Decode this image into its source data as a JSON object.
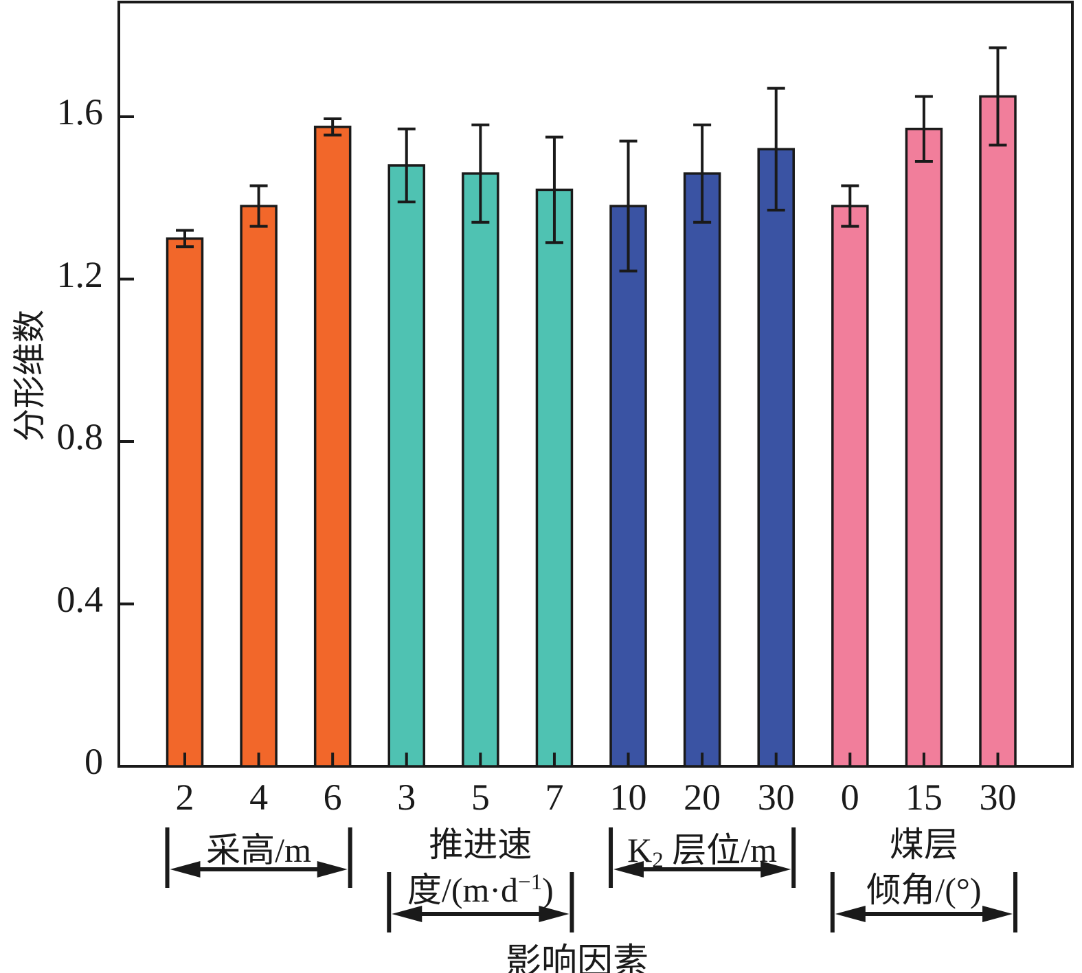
{
  "chart_data": {
    "type": "bar",
    "title": "",
    "ylabel": "分形维数",
    "xlabel": "影响因素",
    "yticks": [
      0,
      0.4,
      0.8,
      1.2,
      1.6
    ],
    "ylim": [
      0,
      1.88
    ],
    "axis_color": "#1a1a1a",
    "groups": [
      {
        "label_lines": [
          "采高/m"
        ],
        "color": "#F2672A",
        "categories": [
          "2",
          "4",
          "6"
        ],
        "values": [
          1.3,
          1.38,
          1.575
        ],
        "errors": [
          0.02,
          0.05,
          0.02
        ]
      },
      {
        "label_lines": [
          "推进速",
          "度/(m·d⁻¹)"
        ],
        "color": "#4FC2B2",
        "categories": [
          "3",
          "5",
          "7"
        ],
        "values": [
          1.48,
          1.46,
          1.42
        ],
        "errors": [
          0.09,
          0.12,
          0.13
        ]
      },
      {
        "label_lines": [
          "K₂ 层位/m"
        ],
        "color": "#3A53A3",
        "categories": [
          "10",
          "20",
          "30"
        ],
        "values": [
          1.38,
          1.46,
          1.52
        ],
        "errors": [
          0.16,
          0.12,
          0.15
        ]
      },
      {
        "label_lines": [
          "煤层",
          "倾角/(°)"
        ],
        "color": "#F17E9B",
        "categories": [
          "0",
          "15",
          "30"
        ],
        "values": [
          1.38,
          1.57,
          1.65
        ],
        "errors": [
          0.05,
          0.08,
          0.12
        ]
      }
    ]
  }
}
